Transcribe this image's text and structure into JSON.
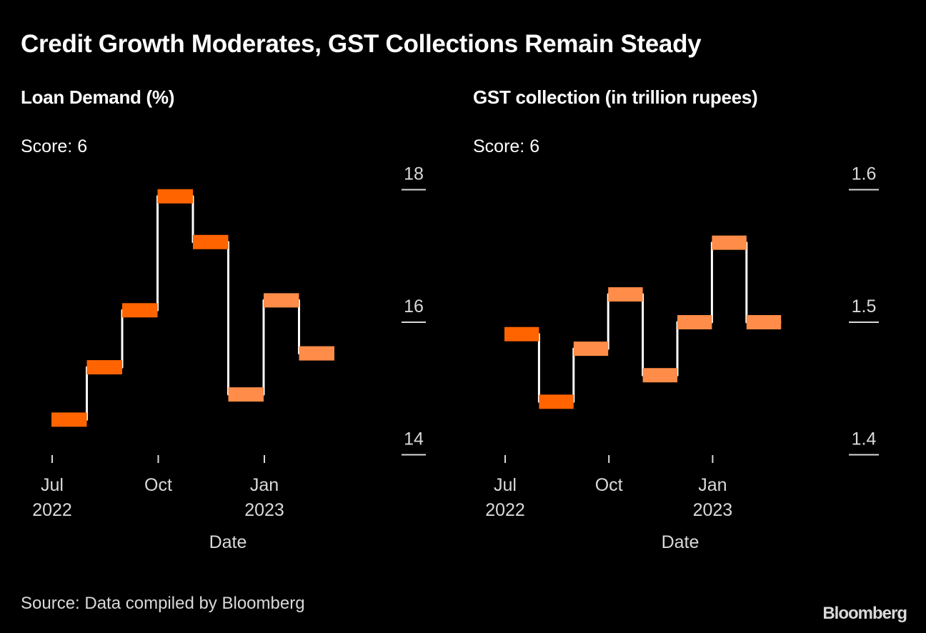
{
  "title": "Credit Growth Moderates, GST Collections Remain Steady",
  "source": "Source: Data compiled by Bloomberg",
  "logo": "Bloomberg",
  "colors": {
    "background": "#000000",
    "dark_orange": "#FF6400",
    "light_orange": "#FF8C48",
    "line": "#FFFFFF",
    "axis": "#D9D9D9"
  },
  "chart_data": [
    {
      "type": "line",
      "style": "step-with-bars",
      "title": "Loan Demand (%)",
      "score_label": "Score: 6",
      "xlabel": "Date",
      "ylabel": "",
      "x": [
        "2022-07",
        "2022-08",
        "2022-09",
        "2022-10",
        "2022-11",
        "2022-12",
        "2023-01",
        "2023-02"
      ],
      "values": [
        14.53,
        15.32,
        16.18,
        17.9,
        17.21,
        14.91,
        16.33,
        15.53
      ],
      "bar_color_class": [
        "dark",
        "dark",
        "dark",
        "dark",
        "dark",
        "light",
        "light",
        "light"
      ],
      "ylim": [
        13.7,
        18.3
      ],
      "yticks": [
        14,
        16,
        18
      ],
      "ytick_labels": [
        "14",
        "16",
        "18"
      ],
      "xticks": [
        {
          "month_index": 0,
          "line1": "Jul",
          "line2": "2022"
        },
        {
          "month_index": 3,
          "line1": "Oct",
          "line2": ""
        },
        {
          "month_index": 6,
          "line1": "Jan",
          "line2": "2023"
        }
      ],
      "y_axis_side": "right",
      "grid": false
    },
    {
      "type": "line",
      "style": "step-with-bars",
      "title": "GST collection (in trillion rupees)",
      "score_label": "Score: 6",
      "xlabel": "Date",
      "ylabel": "",
      "x": [
        "2022-07",
        "2022-08",
        "2022-09",
        "2022-10",
        "2022-11",
        "2022-12",
        "2023-01",
        "2023-02"
      ],
      "values": [
        1.491,
        1.44,
        1.48,
        1.521,
        1.46,
        1.5,
        1.56,
        1.5
      ],
      "bar_color_class": [
        "dark",
        "dark",
        "light",
        "light",
        "light",
        "light",
        "light",
        "light"
      ],
      "ylim": [
        1.385,
        1.615
      ],
      "yticks": [
        1.4,
        1.5,
        1.6
      ],
      "ytick_labels": [
        "1.4",
        "1.5",
        "1.6"
      ],
      "xticks": [
        {
          "month_index": 0,
          "line1": "Jul",
          "line2": "2022"
        },
        {
          "month_index": 3,
          "line1": "Oct",
          "line2": ""
        },
        {
          "month_index": 6,
          "line1": "Jan",
          "line2": "2023"
        }
      ],
      "y_axis_side": "right",
      "grid": false
    }
  ]
}
